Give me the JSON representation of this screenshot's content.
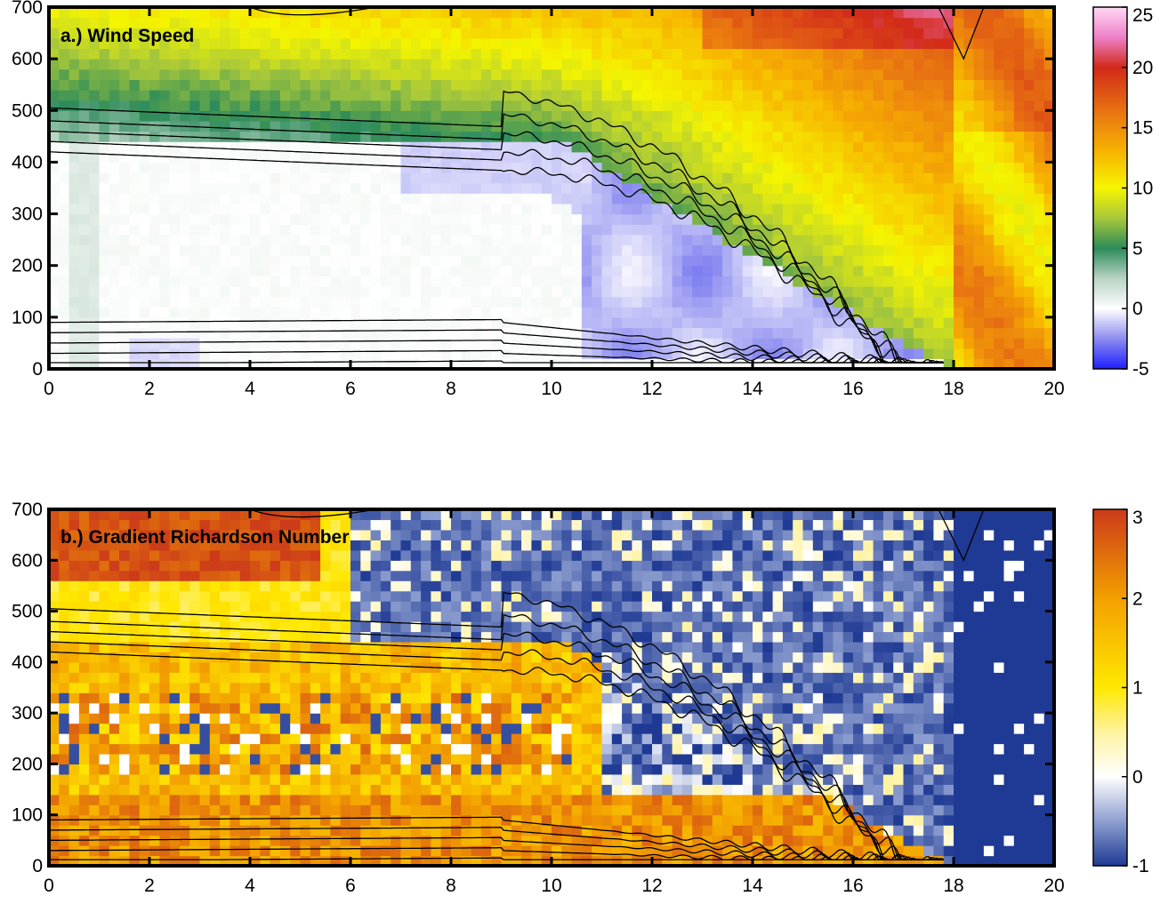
{
  "chart_data": [
    {
      "type": "heatmap",
      "title": "a.) Wind Speed",
      "xlabel": "",
      "ylabel": "",
      "xlim": [
        0,
        20
      ],
      "ylim": [
        0,
        700
      ],
      "x_ticks": [
        "0",
        "2",
        "4",
        "6",
        "8",
        "10",
        "12",
        "14",
        "16",
        "18",
        "20"
      ],
      "y_ticks": [
        "0",
        "100",
        "200",
        "300",
        "400",
        "500",
        "600",
        "700"
      ],
      "colorbar": {
        "range": [
          -5,
          25
        ],
        "ticks": [
          "-5",
          "0",
          "5",
          "10",
          "15",
          "20",
          "25"
        ],
        "stops": [
          {
            "v": -5,
            "color": "#1f1fff"
          },
          {
            "v": -2.5,
            "color": "#8c8cf0"
          },
          {
            "v": 0,
            "color": "#ffffff"
          },
          {
            "v": 2.5,
            "color": "#b9d4c4"
          },
          {
            "v": 5,
            "color": "#2c8b5a"
          },
          {
            "v": 7.5,
            "color": "#a8c83a"
          },
          {
            "v": 10,
            "color": "#f5f500"
          },
          {
            "v": 13,
            "color": "#f7b400"
          },
          {
            "v": 16,
            "color": "#ea7a10"
          },
          {
            "v": 20,
            "color": "#d22a1a"
          },
          {
            "v": 22.5,
            "color": "#ee80c8"
          },
          {
            "v": 25,
            "color": "#ffd8f5"
          }
        ]
      },
      "field_description": "Wind speed (colour) vs x (0-20) and height (0-700); near-zero below 400 for x<10, green jet descending from ~600 at x=4 to the surface at x~18, 12-17 above and beyond x=18.",
      "contour_levels_y_at_x0": [
        10,
        30,
        50,
        70,
        90,
        420,
        440,
        460,
        480,
        505
      ]
    },
    {
      "type": "heatmap",
      "title": "b.) Gradient Richardson Number",
      "xlabel": "",
      "ylabel": "",
      "xlim": [
        0,
        20
      ],
      "ylim": [
        0,
        700
      ],
      "x_ticks": [
        "0",
        "2",
        "4",
        "6",
        "8",
        "10",
        "12",
        "14",
        "16",
        "18",
        "20"
      ],
      "y_ticks": [
        "0",
        "100",
        "200",
        "300",
        "400",
        "500",
        "600",
        "700"
      ],
      "colorbar": {
        "range": [
          -1,
          3
        ],
        "ticks": [
          "-1",
          "0",
          "1",
          "2",
          "3"
        ],
        "stops": [
          {
            "v": -1,
            "color": "#1f3a94"
          },
          {
            "v": -0.5,
            "color": "#8e9fd0"
          },
          {
            "v": 0,
            "color": "#ffffff"
          },
          {
            "v": 0.5,
            "color": "#fff3a0"
          },
          {
            "v": 1,
            "color": "#ffe800"
          },
          {
            "v": 2,
            "color": "#f3a000"
          },
          {
            "v": 3,
            "color": "#cc3a1a"
          }
        ]
      },
      "field_description": "Gradient Richardson number (colour); strongly stable (2-3) near the surface and in layers for x<10, mixed/negative values above the jet and for x>10, about -1 beyond x=18.",
      "contour_levels_y_at_x0": [
        10,
        30,
        50,
        70,
        90,
        420,
        440,
        460,
        480,
        505
      ]
    }
  ]
}
